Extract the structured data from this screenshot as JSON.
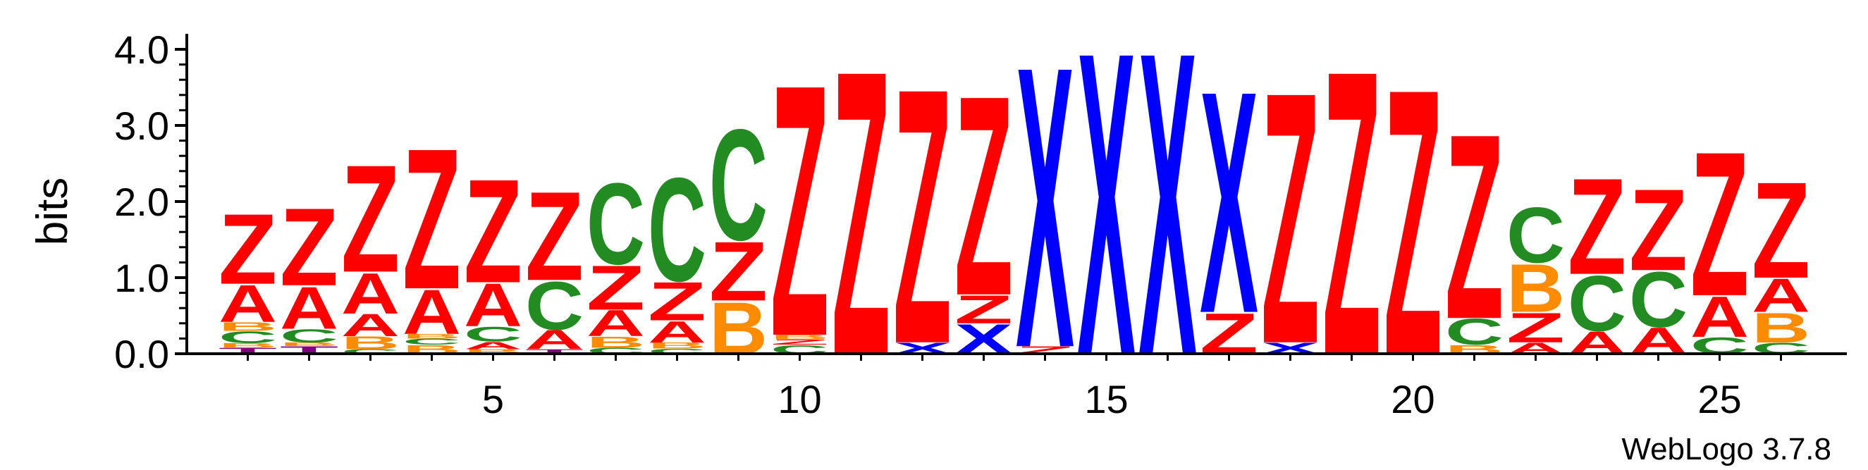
{
  "chart_data": {
    "type": "sequence_logo",
    "ylabel": "bits",
    "ylim": [
      0,
      4.0
    ],
    "yticks": [
      "0.0",
      "1.0",
      "2.0",
      "3.0",
      "4.0"
    ],
    "xticks": [
      "5",
      "10",
      "15",
      "20",
      "25"
    ],
    "xtick_positions": [
      5,
      10,
      15,
      20,
      25
    ],
    "credit": "WebLogo 3.7.8",
    "colors": {
      "Z": "#ff0000",
      "A": "#ff0000",
      "X": "#0000ff",
      "C": "#228b22",
      "B": "#ff8c00",
      "T": "#800080"
    },
    "positions": [
      {
        "pos": 1,
        "stack": [
          [
            "T",
            0.08
          ],
          [
            "B",
            0.06
          ],
          [
            "C",
            0.16
          ],
          [
            "B",
            0.12
          ],
          [
            "A",
            0.5
          ],
          [
            "Z",
            0.95
          ]
        ]
      },
      {
        "pos": 2,
        "stack": [
          [
            "T",
            0.1
          ],
          [
            "B",
            0.05
          ],
          [
            "C",
            0.18
          ],
          [
            "A",
            0.57
          ],
          [
            "Z",
            1.05
          ]
        ]
      },
      {
        "pos": 3,
        "stack": [
          [
            "C",
            0.06
          ],
          [
            "B",
            0.17
          ],
          [
            "A",
            0.3
          ],
          [
            "A",
            0.55
          ],
          [
            "Z",
            1.45
          ]
        ]
      },
      {
        "pos": 4,
        "stack": [
          [
            "B",
            0.12
          ],
          [
            "C",
            0.08
          ],
          [
            "B",
            0.06
          ],
          [
            "A",
            0.6
          ],
          [
            "Z",
            1.9
          ]
        ]
      },
      {
        "pos": 5,
        "stack": [
          [
            "B",
            0.06
          ],
          [
            "A",
            0.1
          ],
          [
            "C",
            0.2
          ],
          [
            "A",
            0.58
          ],
          [
            "Z",
            1.4
          ]
        ]
      },
      {
        "pos": 6,
        "stack": [
          [
            "T",
            0.06
          ],
          [
            "A",
            0.26
          ],
          [
            "C",
            0.65
          ],
          [
            "Z",
            1.2
          ]
        ]
      },
      {
        "pos": 7,
        "stack": [
          [
            "C",
            0.08
          ],
          [
            "B",
            0.15
          ],
          [
            "A",
            0.35
          ],
          [
            "Z",
            0.6
          ],
          [
            "C",
            1.1
          ]
        ]
      },
      {
        "pos": 8,
        "stack": [
          [
            "C",
            0.07
          ],
          [
            "B",
            0.08
          ],
          [
            "A",
            0.29
          ],
          [
            "Z",
            0.52
          ],
          [
            "C",
            1.4
          ]
        ]
      },
      {
        "pos": 9,
        "stack": [
          [
            "B",
            0.7
          ],
          [
            "Z",
            0.8
          ],
          [
            "C",
            1.5
          ]
        ]
      },
      {
        "pos": 10,
        "stack": [
          [
            "C",
            0.12
          ],
          [
            "Z",
            0.07
          ],
          [
            "B",
            0.06
          ],
          [
            "Z",
            3.4
          ]
        ]
      },
      {
        "pos": 11,
        "stack": [
          [
            "Z",
            3.85
          ]
        ]
      },
      {
        "pos": 12,
        "stack": [
          [
            "X",
            0.15
          ],
          [
            "Z",
            3.45
          ]
        ]
      },
      {
        "pos": 13,
        "stack": [
          [
            "X",
            0.4
          ],
          [
            "Z",
            0.38
          ],
          [
            "Z",
            2.7
          ]
        ]
      },
      {
        "pos": 14,
        "stack": [
          [
            "Z",
            0.1
          ],
          [
            "X",
            3.8
          ]
        ]
      },
      {
        "pos": 15,
        "stack": [
          [
            "X",
            4.1
          ]
        ]
      },
      {
        "pos": 16,
        "stack": [
          [
            "X",
            4.1
          ]
        ]
      },
      {
        "pos": 17,
        "stack": [
          [
            "Z",
            0.55
          ],
          [
            "X",
            3.0
          ]
        ]
      },
      {
        "pos": 18,
        "stack": [
          [
            "X",
            0.15
          ],
          [
            "Z",
            3.4
          ]
        ]
      },
      {
        "pos": 19,
        "stack": [
          [
            "Z",
            3.85
          ]
        ]
      },
      {
        "pos": 20,
        "stack": [
          [
            "Z",
            3.6
          ]
        ]
      },
      {
        "pos": 21,
        "stack": [
          [
            "B",
            0.12
          ],
          [
            "C",
            0.35
          ],
          [
            "Z",
            2.5
          ]
        ]
      },
      {
        "pos": 22,
        "stack": [
          [
            "A",
            0.15
          ],
          [
            "Z",
            0.4
          ],
          [
            "B",
            0.65
          ],
          [
            "C",
            0.75
          ]
        ]
      },
      {
        "pos": 23,
        "stack": [
          [
            "A",
            0.3
          ],
          [
            "C",
            0.75
          ],
          [
            "Z",
            1.3
          ]
        ]
      },
      {
        "pos": 24,
        "stack": [
          [
            "A",
            0.35
          ],
          [
            "C",
            0.75
          ],
          [
            "Z",
            1.1
          ]
        ]
      },
      {
        "pos": 25,
        "stack": [
          [
            "C",
            0.22
          ],
          [
            "A",
            0.55
          ],
          [
            "Z",
            1.95
          ]
        ]
      },
      {
        "pos": 26,
        "stack": [
          [
            "C",
            0.15
          ],
          [
            "B",
            0.4
          ],
          [
            "A",
            0.45
          ],
          [
            "Z",
            1.3
          ]
        ]
      }
    ]
  }
}
